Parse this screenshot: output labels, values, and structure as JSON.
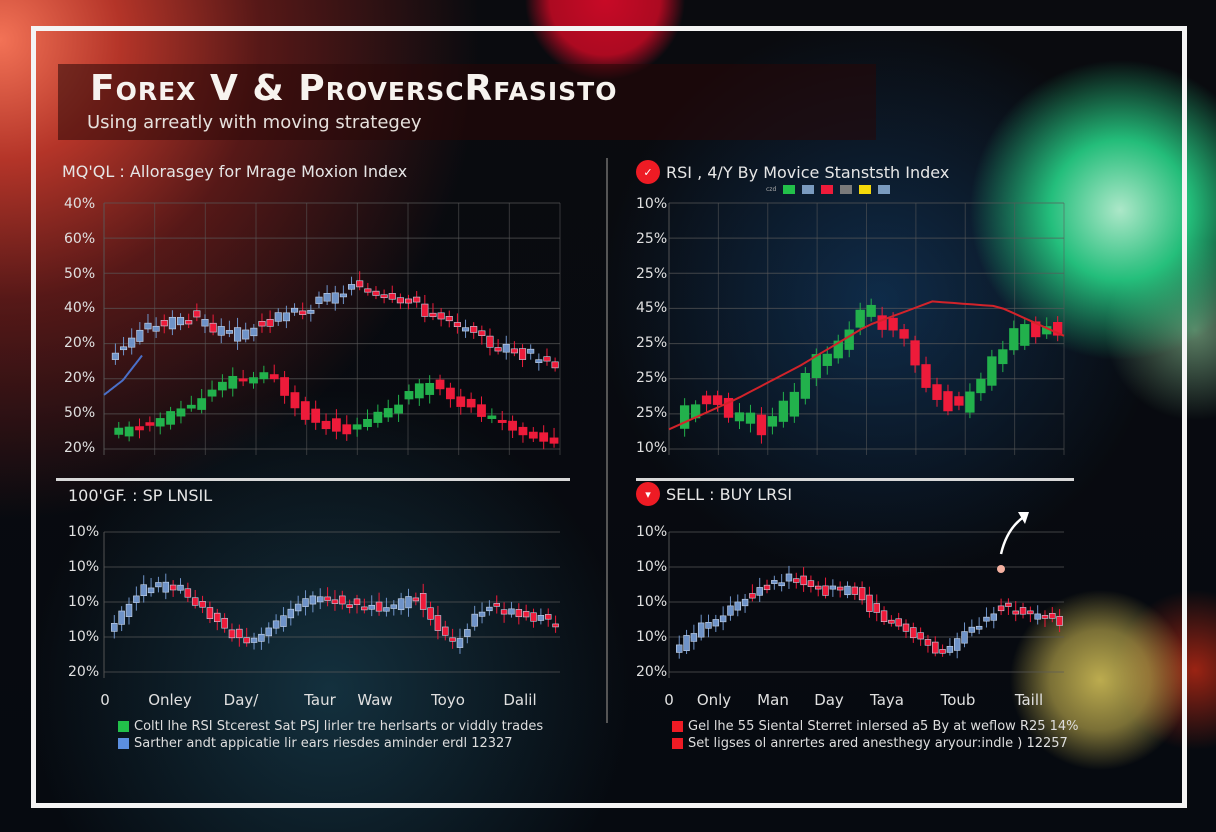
{
  "header": {
    "title": "Forex V & ProverscRfasisto",
    "subtitle": "Using arreatly with moving strategey"
  },
  "colors": {
    "bull_green": "#22b14c",
    "bear_red": "#ee1b3a",
    "neutral_blue": "#6f93c8",
    "ma_red": "#d2232a",
    "ma_blue": "#4a6fc8",
    "grid": "#5a5a5a",
    "frame": "#f4f4f4"
  },
  "panels": {
    "top_left": {
      "title": "MQ'QL : Allorasgey for Mrage Moxion Index",
      "y_ticks": [
        "40%",
        "60%",
        "50%",
        "40%",
        "20%",
        "20%",
        "50%",
        "20%"
      ]
    },
    "top_right": {
      "icon": "red-gauge-icon",
      "title": "RSI , 4/Y By Movice Stanststh Index",
      "color_keys_label": "czd",
      "color_keys": [
        "#22c04a",
        "#7a9bbf",
        "#ee1b3a",
        "#7a7a7a",
        "#f5d90a",
        "#7a9bbf"
      ],
      "y_ticks": [
        "10%",
        "25%",
        "25%",
        "45%",
        "25%",
        "25%",
        "25%",
        "10%"
      ]
    },
    "bottom_left": {
      "title": "100'GF. : SP LNSIL",
      "y_ticks": [
        "10%",
        "10%",
        "10%",
        "10%",
        "20%"
      ],
      "x_ticks": [
        "0",
        "Onley",
        "Day/",
        "Taur",
        "Waw",
        "Toyo",
        "Dalil"
      ],
      "legend": [
        {
          "color": "#22c04a",
          "text": "Coltl lhe RSI Stcerest Sat PSJ lirler tre herlsarts or viddly trades"
        },
        {
          "color": "#5b8fe0",
          "text": "Sarther andt appicatie lir ears riesdes aminder erdl 12327"
        }
      ]
    },
    "bottom_right": {
      "icon": "red-sell-icon",
      "title": "SELL : BUY LRSI",
      "y_ticks": [
        "10%",
        "10%",
        "10%",
        "10%",
        "20%"
      ],
      "x_ticks": [
        "0",
        "Only",
        "Man",
        "Day",
        "Taya",
        "Toub",
        "Taill"
      ],
      "legend": [
        {
          "color": "#ee1b24",
          "text": "Gel lhe 55 Siental Sterret inlersed a5 By at weflow R25 14%"
        },
        {
          "color": "#ee1b24",
          "text": "Set ligses ol anrertes ared anesthegy aryour:indle ) 12257"
        }
      ]
    }
  },
  "chart_data": [
    {
      "type": "candlestick",
      "title": "MQ'QL : Allorasgey for Mrage Moxion Index",
      "y_tick_labels": [
        "40%",
        "60%",
        "50%",
        "40%",
        "20%",
        "20%",
        "50%",
        "20%"
      ],
      "grid": true,
      "series": [
        {
          "name": "upper (blue/red candles)",
          "trend_values": [
            38,
            50,
            54,
            46,
            52,
            58,
            66,
            64,
            55,
            46,
            40,
            36
          ]
        },
        {
          "name": "lower (green/red candles)",
          "trend_values": [
            6,
            10,
            18,
            28,
            30,
            12,
            8,
            18,
            28,
            16,
            8,
            4
          ]
        },
        {
          "name": "moving average (blue line)",
          "trend_values": [
            22,
            28,
            38
          ]
        }
      ]
    },
    {
      "type": "candlestick",
      "title": "RSI , 4/Y By Movice Stanststh Index",
      "y_tick_labels": [
        "10%",
        "25%",
        "25%",
        "45%",
        "25%",
        "25%",
        "25%",
        "10%"
      ],
      "grid": true,
      "series": [
        {
          "name": "candles",
          "trend_values": [
            12,
            22,
            14,
            10,
            30,
            44,
            58,
            50,
            26,
            18,
            38,
            52,
            48
          ]
        },
        {
          "name": "moving average (red line)",
          "trend_values": [
            8,
            20,
            34,
            50,
            60,
            58,
            46
          ]
        }
      ]
    },
    {
      "type": "candlestick",
      "title": "100'GF. : SP LNSIL",
      "x_tick_labels": [
        "0",
        "Onley",
        "Day/",
        "Taur",
        "Waw",
        "Toyo",
        "Dalil"
      ],
      "y_tick_labels": [
        "10%",
        "10%",
        "10%",
        "10%",
        "20%"
      ],
      "grid": true,
      "series": [
        {
          "name": "candles",
          "trend_values": [
            30,
            60,
            62,
            40,
            22,
            38,
            55,
            50,
            46,
            54,
            20,
            48,
            42,
            36
          ]
        }
      ]
    },
    {
      "type": "candlestick",
      "title": "SELL : BUY LRSI",
      "x_tick_labels": [
        "0",
        "Only",
        "Man",
        "Day",
        "Taya",
        "Toub",
        "Taill"
      ],
      "y_tick_labels": [
        "10%",
        "10%",
        "10%",
        "10%",
        "20%"
      ],
      "grid": true,
      "annotations": [
        "up-arrow near Taill",
        "marker dot"
      ],
      "series": [
        {
          "name": "candles",
          "trend_values": [
            14,
            34,
            46,
            62,
            68,
            58,
            60,
            40,
            30,
            14,
            30,
            48,
            42,
            36
          ]
        }
      ]
    }
  ]
}
